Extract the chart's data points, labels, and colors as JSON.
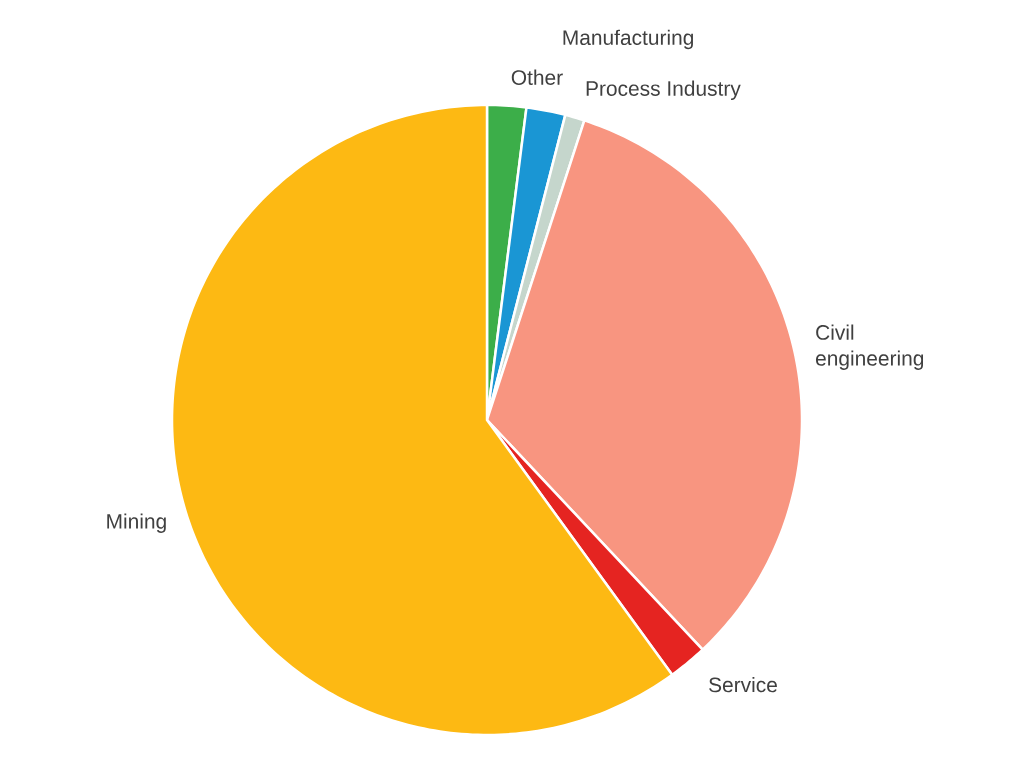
{
  "chart_data": {
    "type": "pie",
    "categories": [
      "Other",
      "Manufacturing",
      "Process Industry",
      "Civil engineering",
      "Service",
      "Mining"
    ],
    "values": [
      2,
      2,
      1,
      33,
      2,
      60
    ],
    "colors": [
      "#3cae49",
      "#1a96d4",
      "#c5d6cc",
      "#f89580",
      "#e52421",
      "#fdb913"
    ]
  }
}
